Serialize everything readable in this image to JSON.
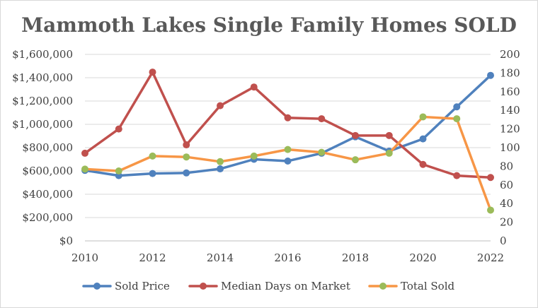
{
  "chart_data": {
    "type": "line",
    "title": "Mammoth Lakes Single Family Homes SOLD",
    "x": [
      2010,
      2011,
      2012,
      2013,
      2014,
      2015,
      2016,
      2017,
      2018,
      2019,
      2020,
      2021,
      2022
    ],
    "x_ticks": [
      "2010",
      "2012",
      "2014",
      "2016",
      "2018",
      "2020",
      "2022"
    ],
    "xlim": [
      2010,
      2022
    ],
    "y_left": {
      "ylim": [
        0,
        1600000
      ],
      "ticks": [
        "$0",
        "$200,000",
        "$400,000",
        "$600,000",
        "$800,000",
        "$1,000,000",
        "$1,200,000",
        "$1,400,000",
        "$1,600,000"
      ]
    },
    "y_right": {
      "ylim": [
        0,
        200
      ],
      "ticks": [
        "0",
        "20",
        "40",
        "60",
        "80",
        "100",
        "120",
        "140",
        "160",
        "180",
        "200"
      ]
    },
    "grid": true,
    "legend_position": "bottom",
    "series": [
      {
        "name": "Sold Price",
        "axis": "left",
        "color": "#4f81bd",
        "values": [
          605000,
          560000,
          578000,
          583000,
          618000,
          700000,
          685000,
          752000,
          893000,
          770000,
          875000,
          1150000,
          1420000
        ]
      },
      {
        "name": "Median Days on Market",
        "axis": "right",
        "color": "#c0504d",
        "values": [
          94,
          120,
          181,
          103,
          145,
          165,
          132,
          131,
          113,
          113,
          82,
          70,
          68
        ]
      },
      {
        "name": "Total Sold",
        "axis": "right",
        "color": "#f79646",
        "marker_color": "#9bbb59",
        "values": [
          77,
          75,
          91,
          90,
          85,
          91,
          98,
          95,
          87,
          94,
          133,
          131,
          33
        ]
      }
    ]
  }
}
